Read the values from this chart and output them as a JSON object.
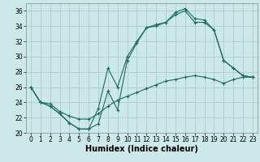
{
  "xlabel": "Humidex (Indice chaleur)",
  "background_color": "#cce8e8",
  "grid_color": "#aacccc",
  "line_color": "#1a6b5a",
  "xlim": [
    -0.5,
    23.5
  ],
  "ylim": [
    20,
    37
  ],
  "xticks": [
    0,
    1,
    2,
    3,
    4,
    5,
    6,
    7,
    8,
    9,
    10,
    11,
    12,
    13,
    14,
    15,
    16,
    17,
    18,
    19,
    20,
    21,
    22,
    23
  ],
  "yticks": [
    20,
    22,
    24,
    26,
    28,
    30,
    32,
    34,
    36
  ],
  "line1_x": [
    0,
    1,
    2,
    3,
    4,
    5,
    6,
    7,
    8,
    9,
    10,
    11,
    12,
    13,
    14,
    15,
    16,
    17,
    18,
    19,
    20,
    21,
    22,
    23
  ],
  "line1_y": [
    26.0,
    24.0,
    23.5,
    22.5,
    21.3,
    20.5,
    20.5,
    21.2,
    25.5,
    23.0,
    29.5,
    31.8,
    33.8,
    34.0,
    34.5,
    35.5,
    36.0,
    34.5,
    34.5,
    33.5,
    29.5,
    28.5,
    27.5,
    27.3
  ],
  "line2_x": [
    0,
    1,
    2,
    3,
    4,
    5,
    6,
    7,
    8,
    9,
    10,
    11,
    12,
    13,
    14,
    15,
    16,
    17,
    18,
    19,
    20,
    21,
    22,
    23
  ],
  "line2_y": [
    26.0,
    24.0,
    23.5,
    22.5,
    21.3,
    20.5,
    20.5,
    23.2,
    28.5,
    26.0,
    30.0,
    32.0,
    33.8,
    34.2,
    34.5,
    35.8,
    36.3,
    35.0,
    34.8,
    33.5,
    29.5,
    28.5,
    27.5,
    27.3
  ],
  "line3_x": [
    0,
    1,
    2,
    3,
    4,
    5,
    6,
    7,
    8,
    9,
    10,
    11,
    12,
    13,
    14,
    15,
    16,
    17,
    18,
    19,
    20,
    21,
    22,
    23
  ],
  "line3_y": [
    26.0,
    24.0,
    23.8,
    22.8,
    22.2,
    21.8,
    21.8,
    22.5,
    23.5,
    24.3,
    24.8,
    25.3,
    25.8,
    26.3,
    26.8,
    27.0,
    27.3,
    27.5,
    27.3,
    27.0,
    26.5,
    27.0,
    27.3,
    27.3
  ],
  "xlabel_fontsize": 7,
  "tick_fontsize": 5.5
}
